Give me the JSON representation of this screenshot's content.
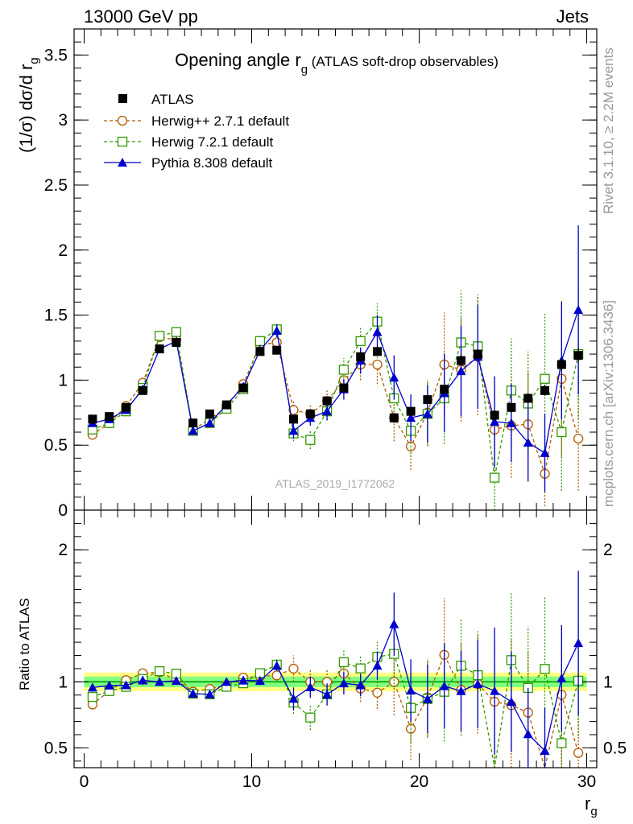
{
  "header": {
    "left": "13000 GeV pp",
    "right": "Jets"
  },
  "side_labels": {
    "rivet": "Rivet 3.1.10, ≥ 2.2M events",
    "mcplots": "mcplots.cern.ch [arXiv:1306.3436]"
  },
  "analysis_id": "ATLAS_2019_I1772062",
  "title": {
    "main": "Opening angle r",
    "sub": "g",
    "suffix": " (ATLAS soft-drop observables)"
  },
  "y_label_top": {
    "main": "(1/σ) dσ/d r",
    "sub": "g"
  },
  "y_label_bottom": "Ratio to ATLAS",
  "x_label": {
    "main": "r",
    "sub": "g"
  },
  "colors": {
    "data": "#000000",
    "herwigpp": "#b35900",
    "herwig7": "#339900",
    "pythia": "#0000cc",
    "band_inner": "#80ff80",
    "band_outer": "#ffff80",
    "ref_line": "#009900"
  },
  "legend": [
    {
      "label": "ATLAS",
      "marker": "square-filled-icon"
    },
    {
      "label": "Herwig++ 2.7.1 default",
      "marker": "circle-open-icon"
    },
    {
      "label": "Herwig 7.2.1 default",
      "marker": "square-open-icon"
    },
    {
      "label": "Pythia 8.308 default",
      "marker": "triangle-filled-icon"
    }
  ],
  "chart_data": {
    "type": "scatter",
    "x": [
      0.5,
      1.5,
      2.5,
      3.5,
      4.5,
      5.5,
      6.5,
      7.5,
      8.5,
      9.5,
      10.5,
      11.5,
      12.5,
      13.5,
      14.5,
      15.5,
      16.5,
      17.5,
      18.5,
      19.5,
      20.5,
      21.5,
      22.5,
      23.5,
      24.5,
      25.5,
      26.5,
      27.5,
      28.5,
      29.5
    ],
    "xlim": [
      -0.6,
      30.6
    ],
    "xticks": [
      0,
      10,
      20,
      30
    ],
    "top": {
      "ylim": [
        0,
        3.7
      ],
      "yticks": [
        0,
        0.5,
        1,
        1.5,
        2,
        2.5,
        3,
        3.5
      ],
      "ytick_labels": [
        "0",
        "0.5",
        "1",
        "1.5",
        "2",
        "2.5",
        "3",
        "3.5"
      ]
    },
    "ratio": {
      "ylim": [
        0.35,
        2.3
      ],
      "yticks": [
        0.5,
        1,
        2
      ],
      "ytick_labels": [
        "0.5",
        "1",
        "2"
      ],
      "band_inner": 0.04,
      "band_outer": 0.07
    },
    "series": [
      {
        "name": "ATLAS",
        "key": "data",
        "values": [
          0.7,
          0.72,
          0.79,
          0.92,
          1.24,
          1.29,
          0.67,
          0.74,
          0.81,
          0.94,
          1.22,
          1.23,
          0.7,
          0.74,
          0.84,
          0.94,
          1.18,
          1.22,
          0.71,
          0.76,
          0.85,
          0.93,
          1.15,
          1.2,
          0.73,
          0.79,
          0.86,
          0.92,
          1.12,
          1.19
        ],
        "errors": [
          0.02,
          0.02,
          0.02,
          0.02,
          0.03,
          0.03,
          0.02,
          0.02,
          0.02,
          0.02,
          0.03,
          0.03,
          0.02,
          0.02,
          0.02,
          0.03,
          0.03,
          0.03,
          0.03,
          0.03,
          0.03,
          0.03,
          0.04,
          0.04,
          0.04,
          0.04,
          0.04,
          0.04,
          0.05,
          0.05
        ]
      },
      {
        "name": "Herwig++ 2.7.1 default",
        "key": "herwigpp",
        "values": [
          0.58,
          0.67,
          0.8,
          0.98,
          1.33,
          1.31,
          0.62,
          0.7,
          0.79,
          0.97,
          1.27,
          1.29,
          0.77,
          0.74,
          0.84,
          1.0,
          1.12,
          1.12,
          0.71,
          0.49,
          0.75,
          1.12,
          1.08,
          1.18,
          0.62,
          0.65,
          0.66,
          0.28,
          1.01,
          0.55
        ],
        "errors": [
          0.02,
          0.02,
          0.02,
          0.03,
          0.03,
          0.03,
          0.02,
          0.02,
          0.02,
          0.03,
          0.04,
          0.05,
          0.07,
          0.07,
          0.08,
          0.1,
          0.12,
          0.15,
          0.18,
          0.18,
          0.25,
          0.4,
          0.4,
          0.45,
          0.35,
          0.4,
          0.4,
          0.25,
          0.6,
          0.4
        ]
      },
      {
        "name": "Herwig 7.2.1 default",
        "key": "herwig7",
        "values": [
          0.62,
          0.67,
          0.76,
          0.94,
          1.34,
          1.37,
          0.61,
          0.67,
          0.78,
          0.93,
          1.3,
          1.39,
          0.59,
          0.54,
          0.76,
          1.08,
          1.3,
          1.45,
          0.86,
          0.61,
          0.74,
          0.86,
          1.29,
          1.26,
          0.25,
          0.92,
          0.82,
          1.01,
          0.6,
          1.2
        ],
        "errors": [
          0.02,
          0.02,
          0.02,
          0.03,
          0.03,
          0.03,
          0.02,
          0.02,
          0.02,
          0.03,
          0.04,
          0.05,
          0.06,
          0.07,
          0.07,
          0.09,
          0.11,
          0.14,
          0.18,
          0.2,
          0.25,
          0.35,
          0.4,
          0.4,
          0.35,
          0.4,
          0.4,
          0.5,
          0.45,
          0.5
        ]
      },
      {
        "name": "Pythia 8.308 default",
        "key": "pythia",
        "values": [
          0.67,
          0.7,
          0.77,
          0.93,
          1.24,
          1.3,
          0.61,
          0.67,
          0.81,
          0.95,
          1.23,
          1.38,
          0.61,
          0.71,
          0.76,
          0.93,
          1.15,
          1.37,
          1.02,
          0.71,
          0.74,
          0.9,
          1.07,
          1.18,
          0.68,
          0.67,
          0.52,
          0.44,
          1.15,
          1.54
        ],
        "errors": [
          0.02,
          0.02,
          0.02,
          0.03,
          0.03,
          0.03,
          0.02,
          0.02,
          0.02,
          0.03,
          0.04,
          0.05,
          0.06,
          0.06,
          0.07,
          0.08,
          0.1,
          0.13,
          0.17,
          0.18,
          0.22,
          0.3,
          0.35,
          0.4,
          0.35,
          0.3,
          0.3,
          0.3,
          0.45,
          0.65
        ]
      }
    ]
  }
}
